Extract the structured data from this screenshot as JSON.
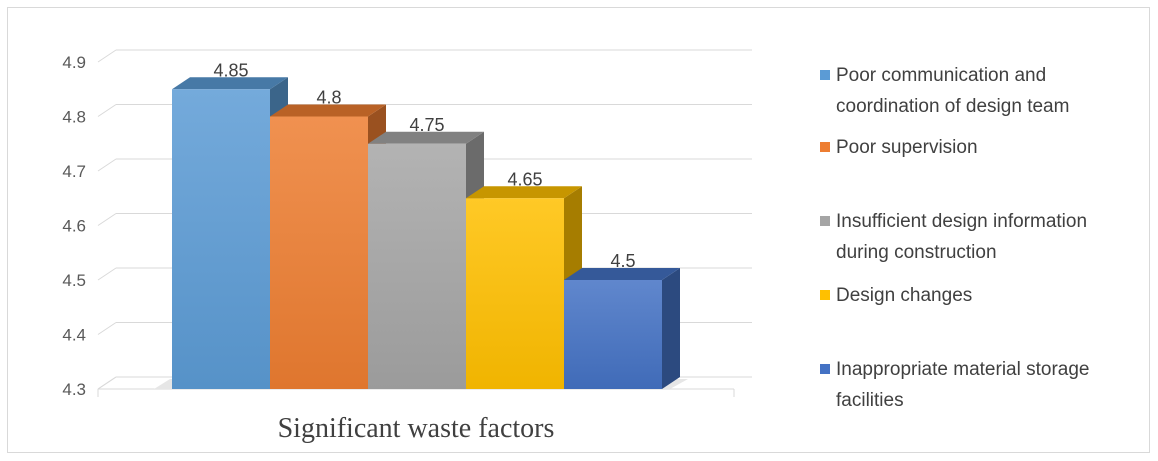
{
  "chart_data": {
    "type": "bar",
    "title": "",
    "xlabel": "Significant waste factors",
    "ylabel": "",
    "ylim": [
      4.3,
      4.9
    ],
    "yticks": [
      "4.3",
      "4.4",
      "4.5",
      "4.6",
      "4.7",
      "4.8",
      "4.9"
    ],
    "grid": true,
    "legend_position": "right",
    "series": [
      {
        "name": "Poor communication and coordination of design team",
        "value": 4.85,
        "label": "4.85",
        "color": "#5b9bd5"
      },
      {
        "name": "Poor supervision",
        "value": 4.8,
        "label": "4.8",
        "color": "#ed7d31"
      },
      {
        "name": "Insufficient design information during construction",
        "value": 4.75,
        "label": "4.75",
        "color": "#a5a5a5"
      },
      {
        "name": "Design changes",
        "value": 4.65,
        "label": "4.65",
        "color": "#ffc000"
      },
      {
        "name": "Inappropriate material storage facilities",
        "value": 4.5,
        "label": "4.5",
        "color": "#4472c4"
      }
    ]
  }
}
